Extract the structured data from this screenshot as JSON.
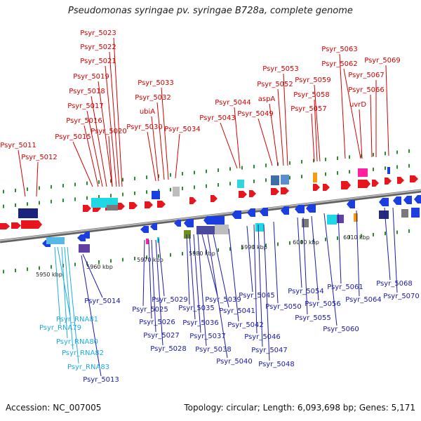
{
  "title": "Pseudomonas syringae pv. syringae B728a, complete genome",
  "footer": {
    "accession": "Accession: NC_007005",
    "summary": "Topology: circular; Length: 6,093,698 bp; Genes: 5,171"
  },
  "colors": {
    "fwd_label": "#d40000",
    "rev_label": "#1a1aa8",
    "rna_label": "#1eaede",
    "backbone": "#8c8c8c",
    "tick": "#2e8b2e"
  },
  "kbp_ticks": [
    {
      "label": "5950 kbp"
    },
    {
      "label": "5960 kbp"
    },
    {
      "label": "5970 kbp"
    },
    {
      "label": "5980 kbp"
    },
    {
      "label": "5990 kbp"
    },
    {
      "label": "6000 kbp"
    },
    {
      "label": "6010 kbp"
    }
  ],
  "top_labels": [
    "Psyr_5011",
    "Psyr_5012",
    "Psyr_5015",
    "Psyr_5016",
    "Psyr_5017",
    "Psyr_5018",
    "Psyr_5019",
    "Psyr_5020",
    "Psyr_5021",
    "Psyr_5022",
    "Psyr_5023",
    "Psyr_5030",
    "ubiA",
    "Psyr_5032",
    "Psyr_5033",
    "Psyr_5034",
    "Psyr_5043",
    "Psyr_5044",
    "Psyr_5049",
    "aspA",
    "Psyr_5052",
    "Psyr_5053",
    "Psyr_5057",
    "Psyr_5058",
    "Psyr_5059",
    "Psyr_5062",
    "Psyr_5063",
    "uvrD",
    "Psyr_5066",
    "Psyr_5067",
    "Psyr_5069"
  ],
  "bottom_labels": [
    "Psyr_5014",
    "Psyr_5013",
    "Psyr_5025",
    "Psyr_5026",
    "Psyr_5027",
    "Psyr_5028",
    "Psyr_5029",
    "Psyr_5035",
    "Psyr_5036",
    "Psyr_5037",
    "Psyr_5038",
    "Psyr_5039",
    "Psyr_5040",
    "Psyr_5041",
    "Psyr_5042",
    "Psyr_5045",
    "Psyr_5046",
    "Psyr_5047",
    "Psyr_5048",
    "Psyr_5050",
    "Psyr_5054",
    "Psyr_5055",
    "Psyr_5056",
    "Psyr_5060",
    "Psyr_5061",
    "Psyr_5064",
    "Psyr_5068",
    "Psyr_5070"
  ],
  "rna_labels": [
    "Psyr_RNA81",
    "Psyr_RNA79",
    "Psyr_RNA80",
    "Psyr_RNA82",
    "Psyr_RNA83"
  ]
}
